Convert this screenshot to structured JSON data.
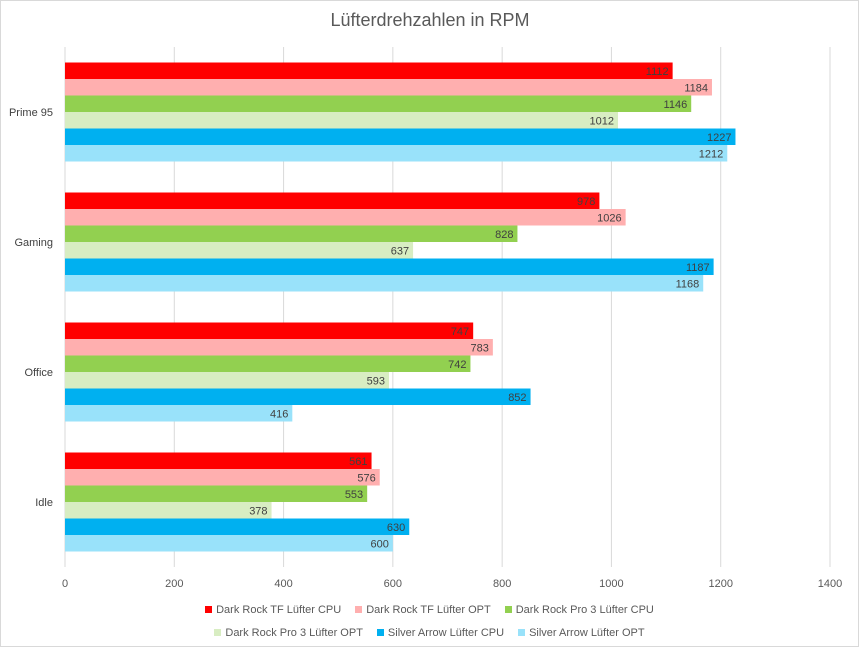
{
  "chart_data": {
    "type": "bar",
    "orientation": "horizontal",
    "title": "Lüfterdrehzahlen in RPM",
    "xlabel": "",
    "ylabel": "",
    "xlim": [
      0,
      1400
    ],
    "x_ticks": [
      0,
      200,
      400,
      600,
      800,
      1000,
      1200,
      1400
    ],
    "grid": true,
    "legend_position": "bottom",
    "categories": [
      "Prime 95",
      "Gaming",
      "Office",
      "Idle"
    ],
    "series": [
      {
        "name": "Dark Rock TF Lüfter CPU",
        "color": "#FF0000",
        "values": [
          1112,
          978,
          747,
          561
        ]
      },
      {
        "name": "Dark Rock TF Lüfter OPT",
        "color": "#FFAFAF",
        "values": [
          1184,
          1026,
          783,
          576
        ]
      },
      {
        "name": "Dark Rock Pro 3 Lüfter CPU",
        "color": "#92D050",
        "values": [
          1146,
          828,
          742,
          553
        ]
      },
      {
        "name": "Dark Rock Pro 3 Lüfter OPT",
        "color": "#D8EDC2",
        "values": [
          1012,
          637,
          593,
          378
        ]
      },
      {
        "name": "Silver Arrow Lüfter CPU",
        "color": "#00B0F0",
        "values": [
          1227,
          1187,
          852,
          630
        ]
      },
      {
        "name": "Silver Arrow Lüfter OPT",
        "color": "#99E2FA",
        "values": [
          1212,
          1168,
          416,
          600
        ]
      }
    ]
  }
}
